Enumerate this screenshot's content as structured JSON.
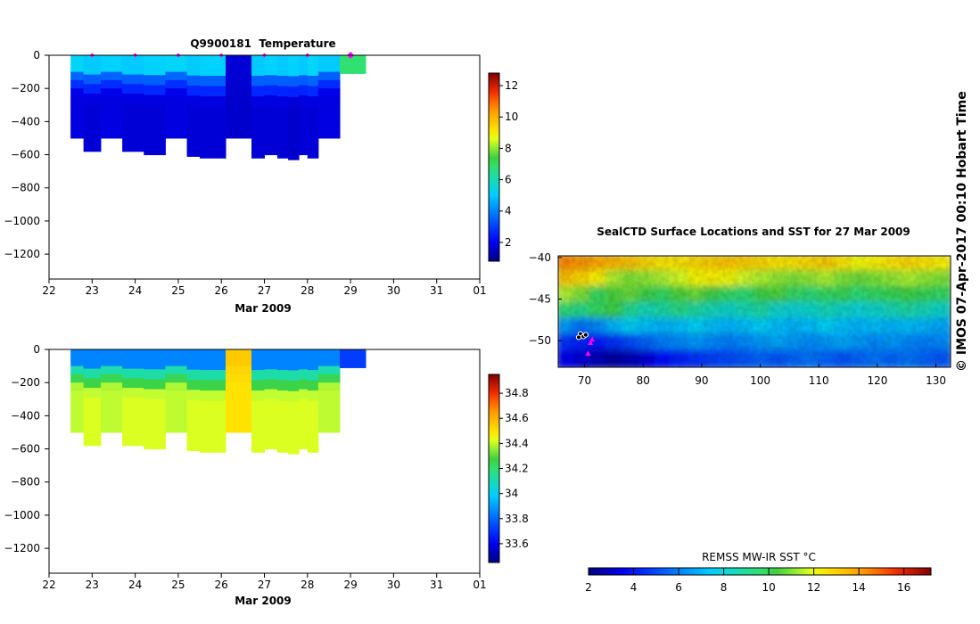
{
  "watermark": "© IMOS 07-Apr-2017 00:10 Hobart Time",
  "chart_data": [
    {
      "type": "heatmap",
      "title": "Q9900181  Temperature",
      "xlabel": "Mar 2009",
      "ylabel": "",
      "x_tick_labels": [
        "22",
        "23",
        "24",
        "25",
        "26",
        "27",
        "28",
        "29",
        "30",
        "31",
        "01"
      ],
      "xlim": [
        22,
        32
      ],
      "y_ticks": [
        0,
        -200,
        -400,
        -600,
        -800,
        -1000,
        -1200
      ],
      "ylim": [
        -1350,
        0
      ],
      "colorbar_ticks": [
        2,
        4,
        6,
        8,
        10,
        12
      ],
      "colorbar_range": [
        0.8,
        12.8
      ],
      "surface_markers_day": [
        23.0,
        24.0,
        25.0,
        26.0,
        27.0,
        28.0,
        29.0
      ],
      "profiles": [
        {
          "t0": 22.5,
          "t1": 22.8,
          "depth": 500,
          "surface_value": 5.2,
          "deep_value": 1.8
        },
        {
          "t0": 22.8,
          "t1": 23.2,
          "depth": 580,
          "surface_value": 5.0,
          "deep_value": 1.7
        },
        {
          "t0": 23.2,
          "t1": 23.7,
          "depth": 500,
          "surface_value": 5.1,
          "deep_value": 1.8
        },
        {
          "t0": 23.7,
          "t1": 24.2,
          "depth": 580,
          "surface_value": 5.0,
          "deep_value": 1.7
        },
        {
          "t0": 24.2,
          "t1": 24.7,
          "depth": 600,
          "surface_value": 5.1,
          "deep_value": 1.7
        },
        {
          "t0": 24.7,
          "t1": 25.2,
          "depth": 500,
          "surface_value": 5.2,
          "deep_value": 1.8
        },
        {
          "t0": 25.2,
          "t1": 25.5,
          "depth": 610,
          "surface_value": 5.0,
          "deep_value": 1.7
        },
        {
          "t0": 25.5,
          "t1": 26.1,
          "depth": 620,
          "surface_value": 5.1,
          "deep_value": 1.7
        },
        {
          "t0": 26.1,
          "t1": 26.7,
          "depth": 500,
          "surface_value": 1.7,
          "deep_value": 1.6
        },
        {
          "t0": 26.7,
          "t1": 27.0,
          "depth": 620,
          "surface_value": 5.0,
          "deep_value": 1.7
        },
        {
          "t0": 27.0,
          "t1": 27.3,
          "depth": 600,
          "surface_value": 5.1,
          "deep_value": 1.7
        },
        {
          "t0": 27.3,
          "t1": 27.55,
          "depth": 620,
          "surface_value": 5.0,
          "deep_value": 1.7
        },
        {
          "t0": 27.55,
          "t1": 27.8,
          "depth": 630,
          "surface_value": 5.1,
          "deep_value": 1.6
        },
        {
          "t0": 27.8,
          "t1": 28.0,
          "depth": 600,
          "surface_value": 5.0,
          "deep_value": 1.7
        },
        {
          "t0": 28.0,
          "t1": 28.25,
          "depth": 620,
          "surface_value": 5.2,
          "deep_value": 1.7
        },
        {
          "t0": 28.25,
          "t1": 28.75,
          "depth": 500,
          "surface_value": 5.0,
          "deep_value": 1.8
        },
        {
          "t0": 28.75,
          "t1": 29.35,
          "depth": 110,
          "surface_value": 6.8,
          "deep_value": 6.8
        }
      ]
    },
    {
      "type": "heatmap",
      "title": "",
      "xlabel": "Mar 2009",
      "ylabel": "",
      "x_tick_labels": [
        "22",
        "23",
        "24",
        "25",
        "26",
        "27",
        "28",
        "29",
        "30",
        "31",
        "01"
      ],
      "xlim": [
        22,
        32
      ],
      "y_ticks": [
        0,
        -200,
        -400,
        -600,
        -800,
        -1000,
        -1200
      ],
      "ylim": [
        -1350,
        0
      ],
      "colorbar_ticks": [
        33.6,
        33.8,
        34,
        34.2,
        34.4,
        34.6,
        34.8
      ],
      "colorbar_tick_labels": [
        "33.6",
        "33.8",
        "34",
        "34.2",
        "34.4",
        "34.6",
        "34.8"
      ],
      "colorbar_range": [
        33.45,
        34.95
      ],
      "profiles": [
        {
          "t0": 22.5,
          "t1": 22.8,
          "depth": 500,
          "surface_value": 33.85,
          "deep_value": 34.4
        },
        {
          "t0": 22.8,
          "t1": 23.2,
          "depth": 580,
          "surface_value": 33.85,
          "deep_value": 34.42
        },
        {
          "t0": 23.2,
          "t1": 23.7,
          "depth": 500,
          "surface_value": 33.85,
          "deep_value": 34.4
        },
        {
          "t0": 23.7,
          "t1": 24.2,
          "depth": 580,
          "surface_value": 33.85,
          "deep_value": 34.42
        },
        {
          "t0": 24.2,
          "t1": 24.7,
          "depth": 600,
          "surface_value": 33.85,
          "deep_value": 34.42
        },
        {
          "t0": 24.7,
          "t1": 25.2,
          "depth": 500,
          "surface_value": 33.85,
          "deep_value": 34.4
        },
        {
          "t0": 25.2,
          "t1": 25.5,
          "depth": 610,
          "surface_value": 33.85,
          "deep_value": 34.42
        },
        {
          "t0": 25.5,
          "t1": 26.1,
          "depth": 620,
          "surface_value": 33.85,
          "deep_value": 34.42
        },
        {
          "t0": 26.1,
          "t1": 26.7,
          "depth": 500,
          "surface_value": 34.55,
          "deep_value": 34.5
        },
        {
          "t0": 26.7,
          "t1": 27.0,
          "depth": 620,
          "surface_value": 33.85,
          "deep_value": 34.42
        },
        {
          "t0": 27.0,
          "t1": 27.3,
          "depth": 600,
          "surface_value": 33.85,
          "deep_value": 34.42
        },
        {
          "t0": 27.3,
          "t1": 27.55,
          "depth": 620,
          "surface_value": 33.85,
          "deep_value": 34.42
        },
        {
          "t0": 27.55,
          "t1": 27.8,
          "depth": 630,
          "surface_value": 33.85,
          "deep_value": 34.42
        },
        {
          "t0": 27.8,
          "t1": 28.0,
          "depth": 600,
          "surface_value": 33.85,
          "deep_value": 34.42
        },
        {
          "t0": 28.0,
          "t1": 28.25,
          "depth": 620,
          "surface_value": 33.85,
          "deep_value": 34.42
        },
        {
          "t0": 28.25,
          "t1": 28.75,
          "depth": 500,
          "surface_value": 33.85,
          "deep_value": 34.4
        },
        {
          "t0": 28.75,
          "t1": 29.35,
          "depth": 110,
          "surface_value": 33.72,
          "deep_value": 33.72
        }
      ]
    },
    {
      "type": "heatmap",
      "title": "SealCTD Surface Locations and SST for 27 Mar 2009",
      "xlabel": "",
      "ylabel": "",
      "x_ticks": [
        70,
        80,
        90,
        100,
        110,
        120,
        130
      ],
      "xlim": [
        65.5,
        132.5
      ],
      "y_ticks": [
        -40,
        -45,
        -50
      ],
      "ylim": [
        -53.2,
        -39.8
      ],
      "colorbar_label": "REMSS MW-IR SST °C",
      "colorbar_ticks": [
        2,
        4,
        6,
        8,
        10,
        12,
        14,
        16
      ],
      "colorbar_range": [
        2,
        17.2
      ],
      "sst_field_degC": [
        [
          14.5,
          14.2,
          13.8,
          13.5,
          13.2,
          12.8,
          12.5,
          12.5,
          12.8,
          13.0,
          13.2,
          13.0,
          12.8,
          12.5,
          12.5,
          12.8,
          13.0,
          12.5,
          12.0,
          12.2,
          12.5,
          12.8,
          12.5,
          12.2
        ],
        [
          13.2,
          12.8,
          12.2,
          11.5,
          11.0,
          11.2,
          11.5,
          11.8,
          12.0,
          12.2,
          12.0,
          11.8,
          11.5,
          11.2,
          11.0,
          11.2,
          11.5,
          11.0,
          10.8,
          11.0,
          11.2,
          11.5,
          11.2,
          11.0
        ],
        [
          11.5,
          11.0,
          9.8,
          10.5,
          10.8,
          10.2,
          9.8,
          10.5,
          10.8,
          10.2,
          9.8,
          9.5,
          10.2,
          10.5,
          9.8,
          9.5,
          9.8,
          10.0,
          9.5,
          9.8,
          10.0,
          10.2,
          10.0,
          9.8
        ],
        [
          9.5,
          9.2,
          9.8,
          10.2,
          9.0,
          8.5,
          8.8,
          9.2,
          8.8,
          8.5,
          8.2,
          8.5,
          8.8,
          8.2,
          8.0,
          8.2,
          8.5,
          8.2,
          8.0,
          8.2,
          8.5,
          8.8,
          8.5,
          8.2
        ],
        [
          6.5,
          5.8,
          6.2,
          7.0,
          7.5,
          7.2,
          7.0,
          7.2,
          7.5,
          7.2,
          7.0,
          7.2,
          7.5,
          7.2,
          7.0,
          7.2,
          7.5,
          7.2,
          7.0,
          7.2,
          7.0,
          7.2,
          7.0,
          6.8
        ],
        [
          4.5,
          4.2,
          4.0,
          4.5,
          5.0,
          5.5,
          6.0,
          6.2,
          6.5,
          6.2,
          6.0,
          6.2,
          6.5,
          6.8,
          6.5,
          6.2,
          6.5,
          6.8,
          6.5,
          6.2,
          6.5,
          6.2,
          6.0,
          6.2
        ],
        [
          3.5,
          3.2,
          2.8,
          2.5,
          2.8,
          3.2,
          3.8,
          4.2,
          4.5,
          4.8,
          5.0,
          5.2,
          5.5,
          5.2,
          5.5,
          5.8,
          5.5,
          5.2,
          5.5,
          5.8,
          5.5,
          5.8,
          5.5,
          5.2
        ]
      ],
      "seal_surface_positions": [
        {
          "lon": 69.3,
          "lat": -49.2,
          "symbol": "black-dot"
        },
        {
          "lon": 69.8,
          "lat": -49.5,
          "symbol": "black-dot"
        },
        {
          "lon": 70.2,
          "lat": -49.3,
          "symbol": "black-dot"
        },
        {
          "lon": 69.0,
          "lat": -49.6,
          "symbol": "black-dot"
        },
        {
          "lon": 71.3,
          "lat": -49.8,
          "symbol": "magenta-triangle"
        },
        {
          "lon": 71.0,
          "lat": -50.2,
          "symbol": "magenta-triangle"
        },
        {
          "lon": 70.6,
          "lat": -51.5,
          "symbol": "magenta-triangle"
        }
      ]
    }
  ]
}
